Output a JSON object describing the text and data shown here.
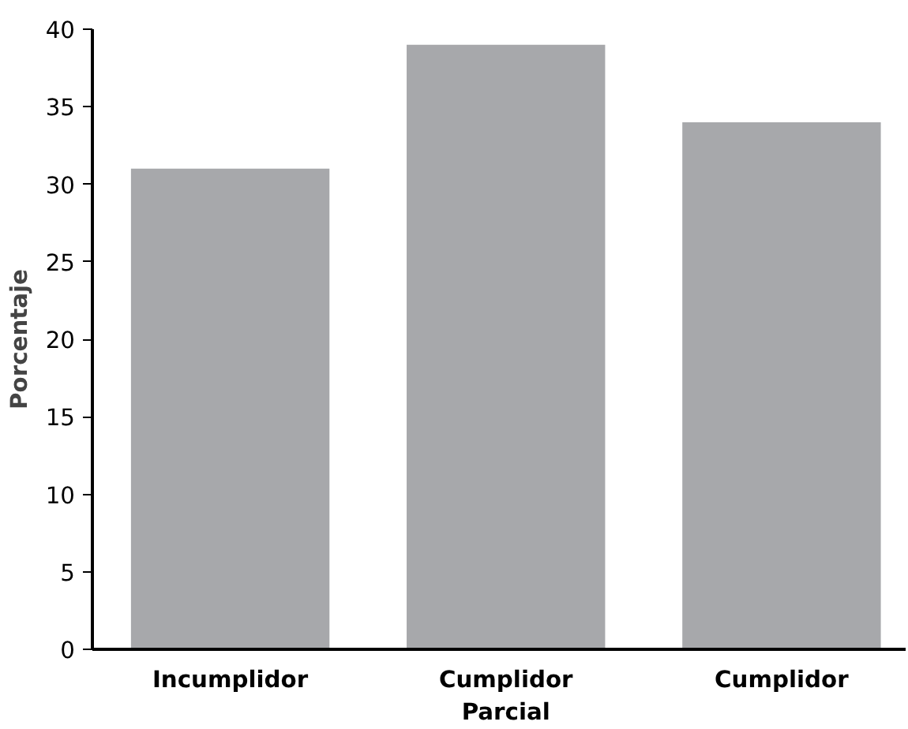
{
  "chart_data": {
    "type": "bar",
    "ylabel": "Porcentaje",
    "categories": [
      "Incumplidor",
      "Cumplidor\nParcial",
      "Cumplidor"
    ],
    "values": [
      31,
      39,
      34
    ],
    "color": "#a7a8ab",
    "ylim": [
      0,
      40
    ],
    "yticks": [
      0,
      5,
      10,
      15,
      20,
      25,
      30,
      35,
      40
    ],
    "grid": false
  }
}
